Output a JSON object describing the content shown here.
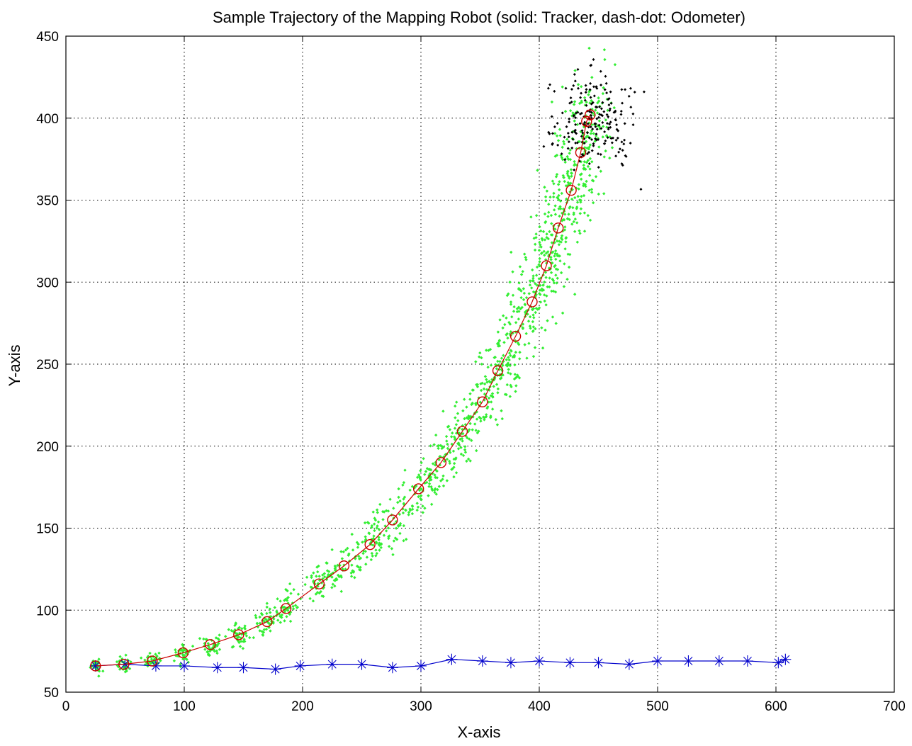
{
  "chart_data": {
    "type": "scatter",
    "title": "Sample Trajectory of the Mapping Robot (solid: Tracker, dash-dot: Odometer)",
    "xlabel": "X-axis",
    "ylabel": "Y-axis",
    "xlim": [
      0,
      700
    ],
    "ylim": [
      50,
      450
    ],
    "xticks": [
      0,
      100,
      200,
      300,
      400,
      500,
      600,
      700
    ],
    "yticks": [
      50,
      100,
      150,
      200,
      250,
      300,
      350,
      400,
      450
    ],
    "grid": true,
    "grid_style": "dotted",
    "tracker_path": {
      "color": "#cc0000",
      "marker": "circle",
      "x": [
        25,
        49,
        73,
        99,
        122,
        146,
        170,
        186,
        214,
        235,
        257,
        276,
        298,
        317,
        335,
        352,
        365,
        380,
        394,
        406,
        416,
        427,
        435,
        440,
        443
      ],
      "y": [
        66,
        67,
        69,
        74,
        79,
        85,
        93,
        101,
        116,
        127,
        140,
        155,
        174,
        190,
        209,
        227,
        246,
        267,
        288,
        310,
        333,
        356,
        379,
        398,
        402
      ]
    },
    "odometer_path": {
      "color": "#0000cc",
      "marker": "star",
      "x": [
        25,
        50,
        76,
        100,
        128,
        150,
        177,
        198,
        225,
        250,
        276,
        300,
        326,
        352,
        376,
        400,
        426,
        450,
        476,
        500,
        526,
        552,
        576,
        602,
        608
      ],
      "y": [
        66,
        67,
        66,
        66,
        65,
        65,
        64,
        66,
        67,
        67,
        65,
        66,
        70,
        69,
        68,
        69,
        68,
        68,
        67,
        69,
        69,
        69,
        69,
        68,
        70
      ]
    },
    "particle_clouds": {
      "tracker_color": "#33ee33",
      "final_color": "#000000",
      "spread_x": [
        4,
        4,
        4,
        5,
        6,
        6,
        7,
        8,
        9,
        9,
        10,
        11,
        12,
        12,
        13,
        14,
        15,
        16,
        17,
        18,
        18,
        19,
        20,
        20,
        21
      ],
      "spread_y": [
        3,
        3,
        4,
        4,
        4,
        5,
        6,
        7,
        8,
        9,
        10,
        11,
        12,
        13,
        14,
        15,
        16,
        17,
        18,
        19,
        20,
        21,
        22,
        22,
        23
      ],
      "count_per_step": 60,
      "final_cloud": {
        "center": [
          445,
          400
        ],
        "spread": [
          22,
          18
        ]
      }
    }
  }
}
